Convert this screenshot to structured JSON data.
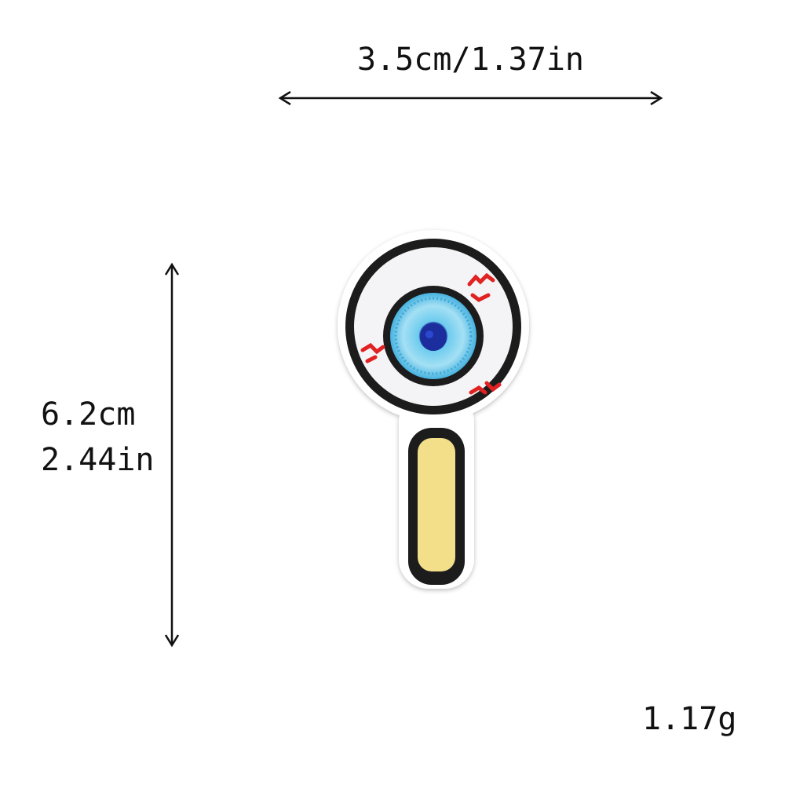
{
  "dimensions": {
    "width_label": "3.5cm/1.37in",
    "height_label_cm": "6.2cm",
    "height_label_in": "2.44in",
    "weight_label": "1.17g"
  },
  "product": {
    "icon": "eyeball-lollipop-patch"
  },
  "colors": {
    "outline": "#1a1a1a",
    "patch_base": "#ffffff",
    "sclera": "#f4f4f6",
    "iris_outer": "#5cc3e6",
    "iris_inner": "#9edcf2",
    "pupil": "#1c2f9e",
    "veins": "#e02020",
    "stick": "#f3df8a"
  }
}
